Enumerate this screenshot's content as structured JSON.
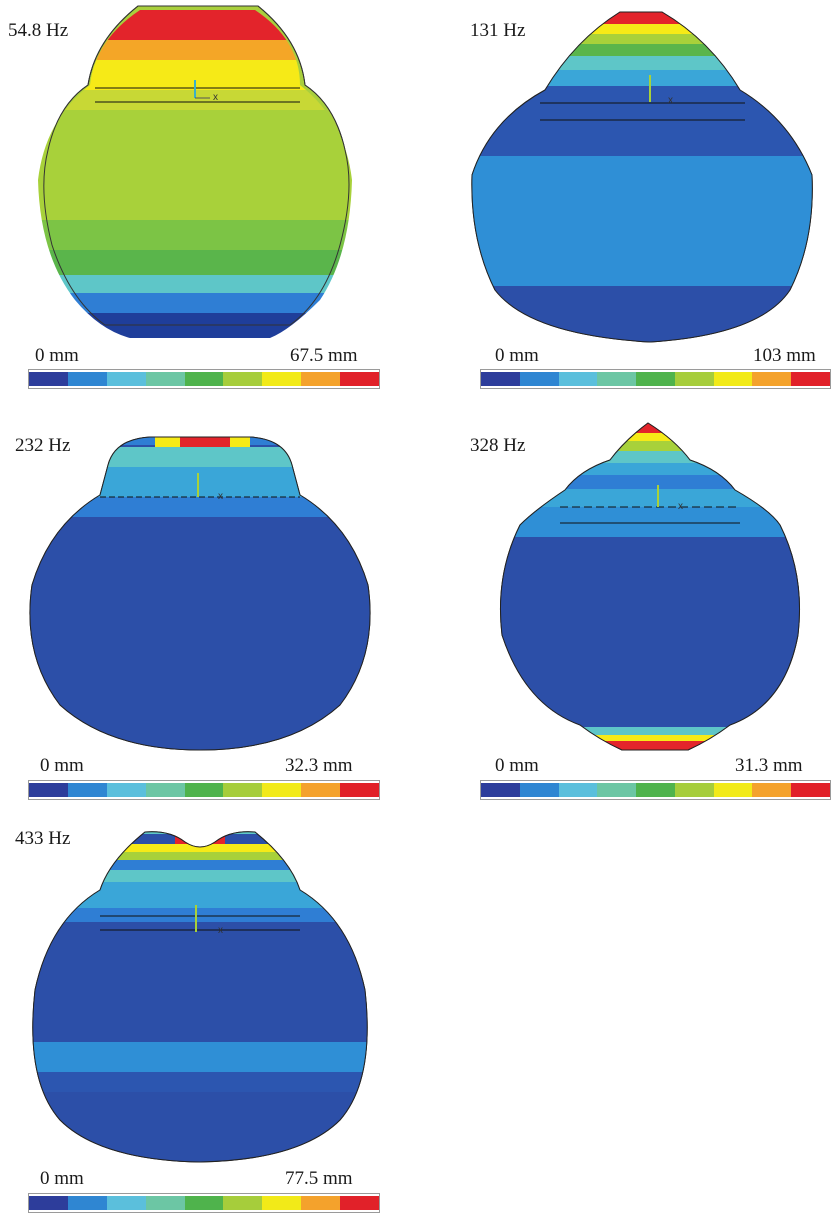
{
  "colors": {
    "c0": "#1f3e9a",
    "c1": "#2f7ed4",
    "c2": "#3aa6d8",
    "c3": "#5ec6c8",
    "c4": "#5ab54b",
    "c5": "#a8d13a",
    "c6": "#f6ea17",
    "c7": "#f4a627",
    "c8": "#e3242b"
  },
  "scale_colors": [
    "#2d3d9b",
    "#2f86d2",
    "#5bbfdc",
    "#6cc6a4",
    "#4fb34c",
    "#a6cd3b",
    "#f2ea18",
    "#f4a22c",
    "#e12129"
  ],
  "panels": [
    {
      "freq": "54.8 Hz",
      "min": "0 mm",
      "max": "67.5 mm"
    },
    {
      "freq": "131 Hz",
      "min": "0 mm",
      "max": "103 mm"
    },
    {
      "freq": "232 Hz",
      "min": "0 mm",
      "max": "32.3 mm"
    },
    {
      "freq": "328 Hz",
      "min": "0 mm",
      "max": "31.3 mm"
    },
    {
      "freq": "433 Hz",
      "min": "0 mm",
      "max": "77.5 mm"
    }
  ]
}
